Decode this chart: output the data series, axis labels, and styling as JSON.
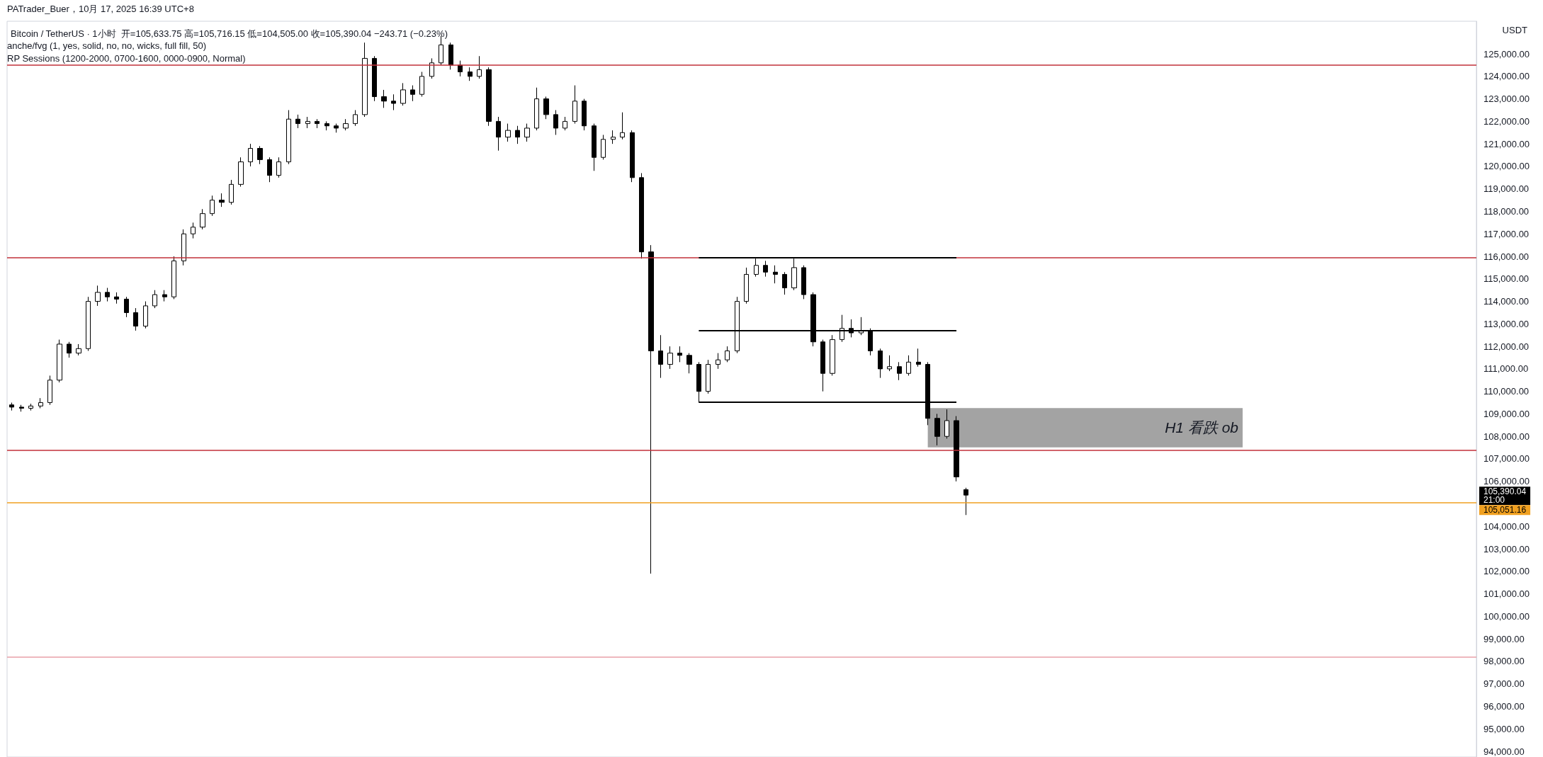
{
  "chart_data": {
    "type": "candlestick",
    "title": "Bitcoin / TetherUS · 1小时  开=105,633.75 高=105,716.15 低=104,505.00 收=105,390.04 −243.71 (−0.23%)",
    "ylabel": "USDT",
    "annotations": [
      "PATrader_Buer，10月 17, 2025 16:39 UTC+8",
      "anche/fvg (1, yes, solid, no, no, wicks, full fill, 50)",
      "RP Sessions (1200-2000, 0700-1600, 0000-0900, Normal)",
      "105,390.04",
      "21:00"
    ],
    "color": "#000000",
    "categories": [
      null,
      null,
      null,
      null,
      null,
      null,
      null,
      null,
      null,
      null,
      null,
      null,
      null,
      null,
      null,
      null,
      null,
      null,
      null,
      null,
      null,
      null,
      null,
      null,
      null,
      null,
      null,
      null,
      null,
      null,
      null,
      null,
      null,
      null,
      null,
      null,
      null,
      null,
      null,
      null,
      null,
      null,
      null,
      null,
      null,
      null,
      null,
      null,
      null,
      null,
      null,
      null,
      null,
      null,
      null,
      null,
      null,
      null,
      null,
      null,
      null,
      null,
      null,
      null,
      null,
      null,
      null,
      null,
      null,
      null,
      null,
      null,
      null,
      null,
      null,
      null,
      null,
      null,
      null,
      null,
      null,
      null,
      null,
      null,
      null,
      null,
      null,
      null,
      null,
      null,
      null,
      null,
      null,
      null,
      null,
      null,
      null,
      null,
      null,
      null,
      null,
      null,
      null,
      null,
      null,
      null,
      null,
      null,
      null,
      null,
      null,
      null,
      null,
      null,
      null,
      null,
      null,
      null,
      null,
      null,
      null,
      null,
      null,
      null,
      null,
      null,
      null,
      null,
      null,
      null,
      null,
      null,
      null,
      null,
      null,
      null,
      null,
      null,
      null,
      null,
      null,
      null,
      null,
      null,
      null,
      null,
      null,
      null,
      null,
      null,
      null,
      null,
      null,
      null
    ],
    "ohlc": [
      [
        109400,
        109500,
        109150,
        109300
      ],
      [
        109300,
        109400,
        109100,
        109250
      ],
      [
        109250,
        109450,
        109150,
        109350
      ],
      [
        109350,
        109700,
        109250,
        109500
      ],
      [
        109500,
        110700,
        109400,
        110500
      ],
      [
        110500,
        112300,
        110400,
        112100
      ],
      [
        112100,
        112200,
        111500,
        111700
      ],
      [
        111700,
        112100,
        111600,
        111900
      ],
      [
        111900,
        114200,
        111800,
        114000
      ],
      [
        114000,
        114700,
        113800,
        114400
      ],
      [
        114400,
        114600,
        114000,
        114200
      ],
      [
        114200,
        114400,
        113900,
        114100
      ],
      [
        114100,
        114200,
        113300,
        113500
      ],
      [
        113500,
        113700,
        112700,
        112900
      ],
      [
        112900,
        114000,
        112800,
        113800
      ],
      [
        113800,
        114500,
        113700,
        114300
      ],
      [
        114300,
        114500,
        114000,
        114200
      ],
      [
        114200,
        116000,
        114100,
        115800
      ],
      [
        115800,
        117200,
        115600,
        117000
      ],
      [
        117000,
        117500,
        116800,
        117300
      ],
      [
        117300,
        118100,
        117200,
        117900
      ],
      [
        117900,
        118700,
        117800,
        118500
      ],
      [
        118500,
        118800,
        118200,
        118400
      ],
      [
        118400,
        119400,
        118300,
        119200
      ],
      [
        119200,
        120400,
        119100,
        120200
      ],
      [
        120200,
        121000,
        120000,
        120800
      ],
      [
        120800,
        120900,
        120100,
        120300
      ],
      [
        120300,
        120400,
        119300,
        119600
      ],
      [
        119600,
        120400,
        119500,
        120200
      ],
      [
        120200,
        122500,
        120100,
        122100
      ],
      [
        122100,
        122300,
        121700,
        121900
      ],
      [
        121900,
        122200,
        121700,
        122000
      ],
      [
        122000,
        122100,
        121700,
        121900
      ],
      [
        121900,
        122000,
        121600,
        121800
      ],
      [
        121800,
        121900,
        121500,
        121700
      ],
      [
        121700,
        122100,
        121600,
        121900
      ],
      [
        121900,
        122500,
        121800,
        122300
      ],
      [
        122300,
        125500,
        122200,
        124800
      ],
      [
        124800,
        124900,
        122900,
        123100
      ],
      [
        123100,
        123400,
        122600,
        122900
      ],
      [
        122900,
        123200,
        122500,
        122800
      ],
      [
        122800,
        123700,
        122700,
        123400
      ],
      [
        123400,
        123600,
        122900,
        123200
      ],
      [
        123200,
        124200,
        123100,
        124000
      ],
      [
        124000,
        124800,
        123900,
        124600
      ],
      [
        124600,
        125800,
        124500,
        125400
      ],
      [
        125400,
        125500,
        124300,
        124500
      ],
      [
        124500,
        124700,
        124000,
        124200
      ],
      [
        124200,
        124400,
        123800,
        124000
      ],
      [
        124000,
        124900,
        123900,
        124300
      ],
      [
        124300,
        124400,
        121800,
        122000
      ],
      [
        122000,
        122200,
        120700,
        121300
      ],
      [
        121300,
        121900,
        121100,
        121600
      ],
      [
        121600,
        121800,
        121000,
        121300
      ],
      [
        121300,
        121900,
        121100,
        121700
      ],
      [
        121700,
        123500,
        121600,
        123000
      ],
      [
        123000,
        123100,
        122100,
        122300
      ],
      [
        122300,
        122500,
        121400,
        121700
      ],
      [
        121700,
        122200,
        121600,
        122000
      ],
      [
        122000,
        123600,
        121900,
        122900
      ],
      [
        122900,
        123000,
        121600,
        121800
      ],
      [
        121800,
        121900,
        119800,
        120400
      ],
      [
        120400,
        121400,
        120300,
        121200
      ],
      [
        121200,
        121600,
        121000,
        121300
      ],
      [
        121300,
        122400,
        121200,
        121500
      ],
      [
        121500,
        121600,
        119300,
        119500
      ],
      [
        119500,
        119700,
        115900,
        116200
      ],
      [
        116200,
        116500,
        101900,
        111800
      ],
      [
        111800,
        112500,
        110600,
        111200
      ],
      [
        111200,
        112000,
        111000,
        111700
      ],
      [
        111700,
        112000,
        111300,
        111600
      ],
      [
        111600,
        111700,
        110800,
        111200
      ],
      [
        111200,
        111300,
        109500,
        110000
      ],
      [
        110000,
        111400,
        109900,
        111200
      ],
      [
        111200,
        111700,
        111000,
        111400
      ],
      [
        111400,
        112000,
        111300,
        111800
      ],
      [
        111800,
        114200,
        111700,
        114000
      ],
      [
        114000,
        115500,
        113900,
        115200
      ],
      [
        115200,
        115900,
        115100,
        115600
      ],
      [
        115600,
        115800,
        115100,
        115300
      ],
      [
        115300,
        115600,
        114800,
        115200
      ],
      [
        115200,
        115300,
        114300,
        114600
      ],
      [
        114600,
        115900,
        114500,
        115500
      ],
      [
        115500,
        115600,
        114100,
        114300
      ],
      [
        114300,
        114400,
        112000,
        112200
      ],
      [
        112200,
        112300,
        110000,
        110800
      ],
      [
        110800,
        112500,
        110700,
        112300
      ],
      [
        112300,
        113400,
        112200,
        112800
      ],
      [
        112800,
        113200,
        112400,
        112600
      ],
      [
        112600,
        113300,
        112500,
        112700
      ],
      [
        112700,
        112800,
        111600,
        111800
      ],
      [
        111800,
        111900,
        110600,
        111000
      ],
      [
        111000,
        111600,
        110900,
        111100
      ],
      [
        111100,
        111300,
        110500,
        110800
      ],
      [
        110800,
        111600,
        110700,
        111300
      ],
      [
        111300,
        111900,
        111100,
        111200
      ],
      [
        111200,
        111300,
        108500,
        108800
      ],
      [
        108800,
        109000,
        107600,
        108000
      ],
      [
        108000,
        109200,
        107900,
        108700
      ],
      [
        108700,
        108900,
        106000,
        106200
      ],
      [
        105633.75,
        105716.15,
        104505,
        105390.04
      ],
      null,
      null,
      null,
      null,
      null,
      null,
      null,
      null,
      null,
      null,
      null,
      null,
      null,
      null,
      null,
      null,
      null,
      null,
      null,
      null,
      null,
      null,
      null,
      null,
      null,
      null,
      null,
      null,
      null,
      null,
      null,
      null,
      null,
      null,
      null,
      null,
      null,
      null,
      null,
      null,
      null,
      null,
      null,
      null,
      null,
      null,
      null,
      null,
      null,
      null,
      null,
      null,
      null
    ],
    "ylim": [
      93750,
      126450
    ],
    "yticks": [
      {
        "value": 94000,
        "label": "94,000.00"
      },
      {
        "value": 95000,
        "label": "95,000.00"
      },
      {
        "value": 96000,
        "label": "96,000.00"
      },
      {
        "value": 97000,
        "label": "97,000.00"
      },
      {
        "value": 98000,
        "label": "98,000.00"
      },
      {
        "value": 99000,
        "label": "99,000.00"
      },
      {
        "value": 100000,
        "label": "100,000.00"
      },
      {
        "value": 101000,
        "label": "101,000.00"
      },
      {
        "value": 102000,
        "label": "102,000.00"
      },
      {
        "value": 103000,
        "label": "103,000.00"
      },
      {
        "value": 104000,
        "label": "104,000.00"
      },
      {
        "value": 105000,
        "label": null
      },
      {
        "value": 106000,
        "label": "106,000.00"
      },
      {
        "value": 107000,
        "label": "107,000.00"
      },
      {
        "value": 108000,
        "label": "108,000.00"
      },
      {
        "value": 109000,
        "label": "109,000.00"
      },
      {
        "value": 110000,
        "label": "110,000.00"
      },
      {
        "value": 111000,
        "label": "111,000.00"
      },
      {
        "value": 112000,
        "label": "112,000.00"
      },
      {
        "value": 113000,
        "label": "113,000.00"
      },
      {
        "value": 114000,
        "label": "114,000.00"
      },
      {
        "value": 115000,
        "label": "115,000.00"
      },
      {
        "value": 116000,
        "label": "116,000.00"
      },
      {
        "value": 117000,
        "label": "117,000.00"
      },
      {
        "value": 118000,
        "label": "118,000.00"
      },
      {
        "value": 119000,
        "label": "119,000.00"
      },
      {
        "value": 120000,
        "label": "120,000.00"
      },
      {
        "value": 121000,
        "label": "121,000.00"
      },
      {
        "value": 122000,
        "label": "122,000.00"
      },
      {
        "value": 123000,
        "label": "123,000.00"
      },
      {
        "value": 124000,
        "label": "124,000.00"
      },
      {
        "value": 125000,
        "label": "125,000.00"
      }
    ],
    "tick_labels": "y",
    "grid": false,
    "ref_lines": [
      {
        "axis": "y",
        "value": 124520,
        "color": "#c2303a"
      },
      {
        "axis": "y",
        "value": 115950,
        "color": "#c2303a"
      },
      {
        "axis": "y",
        "value": 107380,
        "color": "#c2303a"
      },
      {
        "axis": "y",
        "value": 98200,
        "color": "#e8a0a8"
      },
      {
        "axis": "y",
        "value": 105051.16,
        "label": "105,051.16",
        "color": "#f0a020"
      },
      {
        "axis": "y",
        "value": 115950,
        "color": "#000000"
      },
      {
        "axis": "y",
        "value": 112700,
        "color": "#000000"
      },
      {
        "axis": "y",
        "value": 109520,
        "color": "#000000"
      }
    ],
    "bands": [
      {
        "axis": "y",
        "from": 107510,
        "to": 109260,
        "label": "H1 看跌 ob",
        "color": "#9e9e9e"
      }
    ]
  }
}
